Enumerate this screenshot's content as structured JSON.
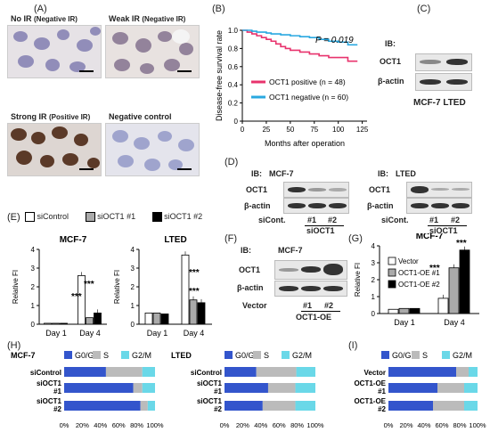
{
  "panels": {
    "A": "(A)",
    "B": "(B)",
    "C": "(C)",
    "D": "(D)",
    "E": "(E)",
    "F": "(F)",
    "G": "(G)",
    "H": "(H)",
    "I": "(I)"
  },
  "ihc": {
    "no_ir": "No IR",
    "no_ir_tag": "(Negative IR)",
    "weak_ir": "Weak IR",
    "weak_ir_tag": "(Negative IR)",
    "strong_ir": "Strong IR",
    "strong_ir_tag": "(Positive IR)",
    "neg_control": "Negative control"
  },
  "blots": {
    "ib": "IB:",
    "oct1": "OCT1",
    "actin": "β-actin",
    "c_caption": "MCF-7 LTED",
    "mcf7": "MCF-7",
    "lted": "LTED",
    "siCont": "siCont.",
    "n1": "#1",
    "n2": "#2",
    "siOCT1": "siOCT1",
    "vector": "Vector",
    "oct1_oe": "OCT1-OE"
  },
  "chart_data": [
    {
      "id": "B",
      "type": "line",
      "ylabel": "Disease-free survival rate",
      "xlabel": "Months after operation",
      "xticks": [
        0,
        25,
        50,
        75,
        100,
        125
      ],
      "yticks": [
        0,
        0.2,
        0.4,
        0.6,
        0.8,
        1.0
      ],
      "ytick_labels": [
        "0",
        "0.2",
        "0.4",
        "0.6",
        "0.8",
        "1.0"
      ],
      "xlim": [
        0,
        130
      ],
      "ylim": [
        0,
        1.0
      ],
      "annotation": "P = 0.019",
      "series": [
        {
          "name": "OCT1 positive (n = 48)",
          "color": "#e8336d",
          "x": [
            0,
            5,
            10,
            15,
            20,
            25,
            30,
            35,
            40,
            45,
            50,
            60,
            70,
            80,
            90,
            100,
            110,
            120
          ],
          "y": [
            1.0,
            0.98,
            0.96,
            0.94,
            0.92,
            0.9,
            0.88,
            0.85,
            0.82,
            0.8,
            0.78,
            0.76,
            0.74,
            0.72,
            0.7,
            0.7,
            0.66,
            0.66
          ]
        },
        {
          "name": "OCT1 negative (n = 60)",
          "color": "#29a8e0",
          "x": [
            0,
            5,
            10,
            15,
            20,
            25,
            30,
            40,
            50,
            60,
            70,
            80,
            90,
            100,
            110,
            120
          ],
          "y": [
            1.0,
            1.0,
            0.99,
            0.98,
            0.98,
            0.97,
            0.96,
            0.95,
            0.94,
            0.93,
            0.92,
            0.9,
            0.88,
            0.87,
            0.84,
            0.84
          ]
        }
      ]
    },
    {
      "id": "E1",
      "type": "bar",
      "title": "MCF-7",
      "ylabel": "Relative FI",
      "categories": [
        "Day 1",
        "Day 4"
      ],
      "ylim": [
        0,
        4
      ],
      "yticks": [
        0,
        1,
        2,
        3,
        4
      ],
      "series": [
        {
          "name": "siControl",
          "color": "#ffffff",
          "values": [
            0.05,
            2.6
          ]
        },
        {
          "name": "siOCT1 #1",
          "color": "#aaaaaa",
          "values": [
            0.05,
            0.35
          ]
        },
        {
          "name": "siOCT1 #2",
          "color": "#000000",
          "values": [
            0.05,
            0.6
          ]
        }
      ],
      "annotations": [
        "***",
        "***"
      ]
    },
    {
      "id": "E2",
      "type": "bar",
      "title": "LTED",
      "ylabel": "Relative FI",
      "categories": [
        "Day 1",
        "Day 4"
      ],
      "ylim": [
        0,
        4
      ],
      "yticks": [
        0,
        1,
        2,
        3,
        4
      ],
      "series": [
        {
          "name": "siControl",
          "color": "#ffffff",
          "values": [
            0.6,
            3.7
          ]
        },
        {
          "name": "siOCT1 #1",
          "color": "#aaaaaa",
          "values": [
            0.6,
            1.3
          ]
        },
        {
          "name": "siOCT1 #2",
          "color": "#000000",
          "values": [
            0.55,
            1.15
          ]
        }
      ],
      "annotations": [
        "***",
        "***"
      ]
    },
    {
      "id": "G",
      "type": "bar",
      "title": "MCF-7",
      "ylabel": "Relative FI",
      "categories": [
        "Day 1",
        "Day 4"
      ],
      "ylim": [
        0,
        4
      ],
      "yticks": [
        0,
        1,
        2,
        3,
        4
      ],
      "series": [
        {
          "name": "Vector",
          "color": "#ffffff",
          "values": [
            0.25,
            0.9
          ]
        },
        {
          "name": "OCT1-OE #1",
          "color": "#aaaaaa",
          "values": [
            0.3,
            2.7
          ]
        },
        {
          "name": "OCT1-OE #2",
          "color": "#000000",
          "values": [
            0.3,
            3.75
          ]
        }
      ],
      "annotations": [
        "***",
        "***"
      ]
    },
    {
      "id": "H1",
      "type": "bar",
      "title": "MCF-7",
      "orientation": "horizontal-stacked",
      "legend": [
        "G0/G1",
        "S",
        "G2/M"
      ],
      "colors": [
        "#3355cc",
        "#bbbbbb",
        "#6ad8e8"
      ],
      "categories": [
        "siControl",
        "siOCT1 #1",
        "siOCT1 #2"
      ],
      "xticks": [
        "0%",
        "20%",
        "40%",
        "60%",
        "80%",
        "100%"
      ],
      "series": [
        {
          "name": "G0/G1",
          "values": [
            46,
            76,
            84
          ]
        },
        {
          "name": "S",
          "values": [
            40,
            10,
            8
          ]
        },
        {
          "name": "G2/M",
          "values": [
            14,
            14,
            8
          ]
        }
      ]
    },
    {
      "id": "H2",
      "type": "bar",
      "title": "LTED",
      "orientation": "horizontal-stacked",
      "legend": [
        "G0/G1",
        "S",
        "G2/M"
      ],
      "colors": [
        "#3355cc",
        "#bbbbbb",
        "#6ad8e8"
      ],
      "categories": [
        "siControl",
        "siOCT1 #1",
        "siOCT1 #2"
      ],
      "xticks": [
        "0%",
        "20%",
        "40%",
        "60%",
        "80%",
        "100%"
      ],
      "series": [
        {
          "name": "G0/G1",
          "values": [
            35,
            48,
            42
          ]
        },
        {
          "name": "S",
          "values": [
            44,
            30,
            36
          ]
        },
        {
          "name": "G2/M",
          "values": [
            21,
            22,
            22
          ]
        }
      ]
    },
    {
      "id": "I",
      "type": "bar",
      "orientation": "horizontal-stacked",
      "legend": [
        "G0/G1",
        "S",
        "G2/M"
      ],
      "colors": [
        "#3355cc",
        "#bbbbbb",
        "#6ad8e8"
      ],
      "categories": [
        "Vector",
        "OCT1-OE #1",
        "OCT1-OE #2"
      ],
      "xticks": [
        "0%",
        "20%",
        "40%",
        "60%",
        "80%",
        "100%"
      ],
      "series": [
        {
          "name": "G0/G1",
          "values": [
            76,
            55,
            50
          ]
        },
        {
          "name": "S",
          "values": [
            14,
            30,
            35
          ]
        },
        {
          "name": "G2/M",
          "values": [
            10,
            15,
            15
          ]
        }
      ]
    }
  ]
}
